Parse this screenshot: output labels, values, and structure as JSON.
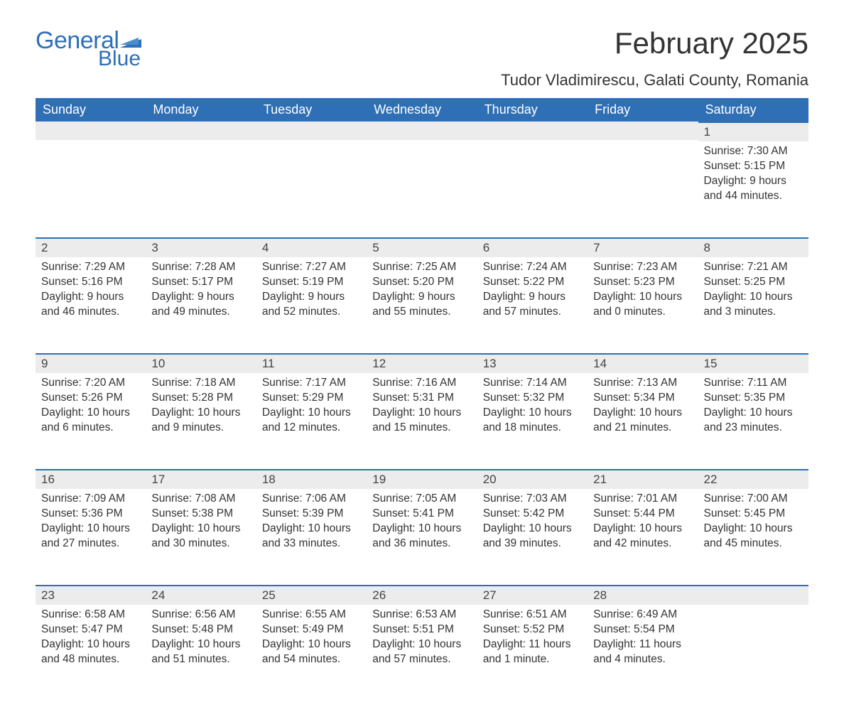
{
  "brand": {
    "word1": "General",
    "word2": "Blue",
    "logo_color": "#2e6fb6"
  },
  "header": {
    "month_title": "February 2025",
    "location": "Tudor Vladimirescu, Galati County, Romania"
  },
  "style": {
    "header_bg": "#2e6fb6",
    "header_text": "#ffffff",
    "daynum_bg": "#ececec",
    "daynum_border": "#2e6fb6",
    "body_text": "#333333",
    "page_bg": "#ffffff",
    "title_fontsize": 42,
    "location_fontsize": 22,
    "dayhead_fontsize": 18,
    "celltext_fontsize": 15.5
  },
  "weekdays": [
    "Sunday",
    "Monday",
    "Tuesday",
    "Wednesday",
    "Thursday",
    "Friday",
    "Saturday"
  ],
  "weeks": [
    [
      null,
      null,
      null,
      null,
      null,
      null,
      {
        "n": "1",
        "sunrise": "Sunrise: 7:30 AM",
        "sunset": "Sunset: 5:15 PM",
        "day1": "Daylight: 9 hours",
        "day2": "and 44 minutes."
      }
    ],
    [
      {
        "n": "2",
        "sunrise": "Sunrise: 7:29 AM",
        "sunset": "Sunset: 5:16 PM",
        "day1": "Daylight: 9 hours",
        "day2": "and 46 minutes."
      },
      {
        "n": "3",
        "sunrise": "Sunrise: 7:28 AM",
        "sunset": "Sunset: 5:17 PM",
        "day1": "Daylight: 9 hours",
        "day2": "and 49 minutes."
      },
      {
        "n": "4",
        "sunrise": "Sunrise: 7:27 AM",
        "sunset": "Sunset: 5:19 PM",
        "day1": "Daylight: 9 hours",
        "day2": "and 52 minutes."
      },
      {
        "n": "5",
        "sunrise": "Sunrise: 7:25 AM",
        "sunset": "Sunset: 5:20 PM",
        "day1": "Daylight: 9 hours",
        "day2": "and 55 minutes."
      },
      {
        "n": "6",
        "sunrise": "Sunrise: 7:24 AM",
        "sunset": "Sunset: 5:22 PM",
        "day1": "Daylight: 9 hours",
        "day2": "and 57 minutes."
      },
      {
        "n": "7",
        "sunrise": "Sunrise: 7:23 AM",
        "sunset": "Sunset: 5:23 PM",
        "day1": "Daylight: 10 hours",
        "day2": "and 0 minutes."
      },
      {
        "n": "8",
        "sunrise": "Sunrise: 7:21 AM",
        "sunset": "Sunset: 5:25 PM",
        "day1": "Daylight: 10 hours",
        "day2": "and 3 minutes."
      }
    ],
    [
      {
        "n": "9",
        "sunrise": "Sunrise: 7:20 AM",
        "sunset": "Sunset: 5:26 PM",
        "day1": "Daylight: 10 hours",
        "day2": "and 6 minutes."
      },
      {
        "n": "10",
        "sunrise": "Sunrise: 7:18 AM",
        "sunset": "Sunset: 5:28 PM",
        "day1": "Daylight: 10 hours",
        "day2": "and 9 minutes."
      },
      {
        "n": "11",
        "sunrise": "Sunrise: 7:17 AM",
        "sunset": "Sunset: 5:29 PM",
        "day1": "Daylight: 10 hours",
        "day2": "and 12 minutes."
      },
      {
        "n": "12",
        "sunrise": "Sunrise: 7:16 AM",
        "sunset": "Sunset: 5:31 PM",
        "day1": "Daylight: 10 hours",
        "day2": "and 15 minutes."
      },
      {
        "n": "13",
        "sunrise": "Sunrise: 7:14 AM",
        "sunset": "Sunset: 5:32 PM",
        "day1": "Daylight: 10 hours",
        "day2": "and 18 minutes."
      },
      {
        "n": "14",
        "sunrise": "Sunrise: 7:13 AM",
        "sunset": "Sunset: 5:34 PM",
        "day1": "Daylight: 10 hours",
        "day2": "and 21 minutes."
      },
      {
        "n": "15",
        "sunrise": "Sunrise: 7:11 AM",
        "sunset": "Sunset: 5:35 PM",
        "day1": "Daylight: 10 hours",
        "day2": "and 23 minutes."
      }
    ],
    [
      {
        "n": "16",
        "sunrise": "Sunrise: 7:09 AM",
        "sunset": "Sunset: 5:36 PM",
        "day1": "Daylight: 10 hours",
        "day2": "and 27 minutes."
      },
      {
        "n": "17",
        "sunrise": "Sunrise: 7:08 AM",
        "sunset": "Sunset: 5:38 PM",
        "day1": "Daylight: 10 hours",
        "day2": "and 30 minutes."
      },
      {
        "n": "18",
        "sunrise": "Sunrise: 7:06 AM",
        "sunset": "Sunset: 5:39 PM",
        "day1": "Daylight: 10 hours",
        "day2": "and 33 minutes."
      },
      {
        "n": "19",
        "sunrise": "Sunrise: 7:05 AM",
        "sunset": "Sunset: 5:41 PM",
        "day1": "Daylight: 10 hours",
        "day2": "and 36 minutes."
      },
      {
        "n": "20",
        "sunrise": "Sunrise: 7:03 AM",
        "sunset": "Sunset: 5:42 PM",
        "day1": "Daylight: 10 hours",
        "day2": "and 39 minutes."
      },
      {
        "n": "21",
        "sunrise": "Sunrise: 7:01 AM",
        "sunset": "Sunset: 5:44 PM",
        "day1": "Daylight: 10 hours",
        "day2": "and 42 minutes."
      },
      {
        "n": "22",
        "sunrise": "Sunrise: 7:00 AM",
        "sunset": "Sunset: 5:45 PM",
        "day1": "Daylight: 10 hours",
        "day2": "and 45 minutes."
      }
    ],
    [
      {
        "n": "23",
        "sunrise": "Sunrise: 6:58 AM",
        "sunset": "Sunset: 5:47 PM",
        "day1": "Daylight: 10 hours",
        "day2": "and 48 minutes."
      },
      {
        "n": "24",
        "sunrise": "Sunrise: 6:56 AM",
        "sunset": "Sunset: 5:48 PM",
        "day1": "Daylight: 10 hours",
        "day2": "and 51 minutes."
      },
      {
        "n": "25",
        "sunrise": "Sunrise: 6:55 AM",
        "sunset": "Sunset: 5:49 PM",
        "day1": "Daylight: 10 hours",
        "day2": "and 54 minutes."
      },
      {
        "n": "26",
        "sunrise": "Sunrise: 6:53 AM",
        "sunset": "Sunset: 5:51 PM",
        "day1": "Daylight: 10 hours",
        "day2": "and 57 minutes."
      },
      {
        "n": "27",
        "sunrise": "Sunrise: 6:51 AM",
        "sunset": "Sunset: 5:52 PM",
        "day1": "Daylight: 11 hours",
        "day2": "and 1 minute."
      },
      {
        "n": "28",
        "sunrise": "Sunrise: 6:49 AM",
        "sunset": "Sunset: 5:54 PM",
        "day1": "Daylight: 11 hours",
        "day2": "and 4 minutes."
      },
      null
    ]
  ]
}
